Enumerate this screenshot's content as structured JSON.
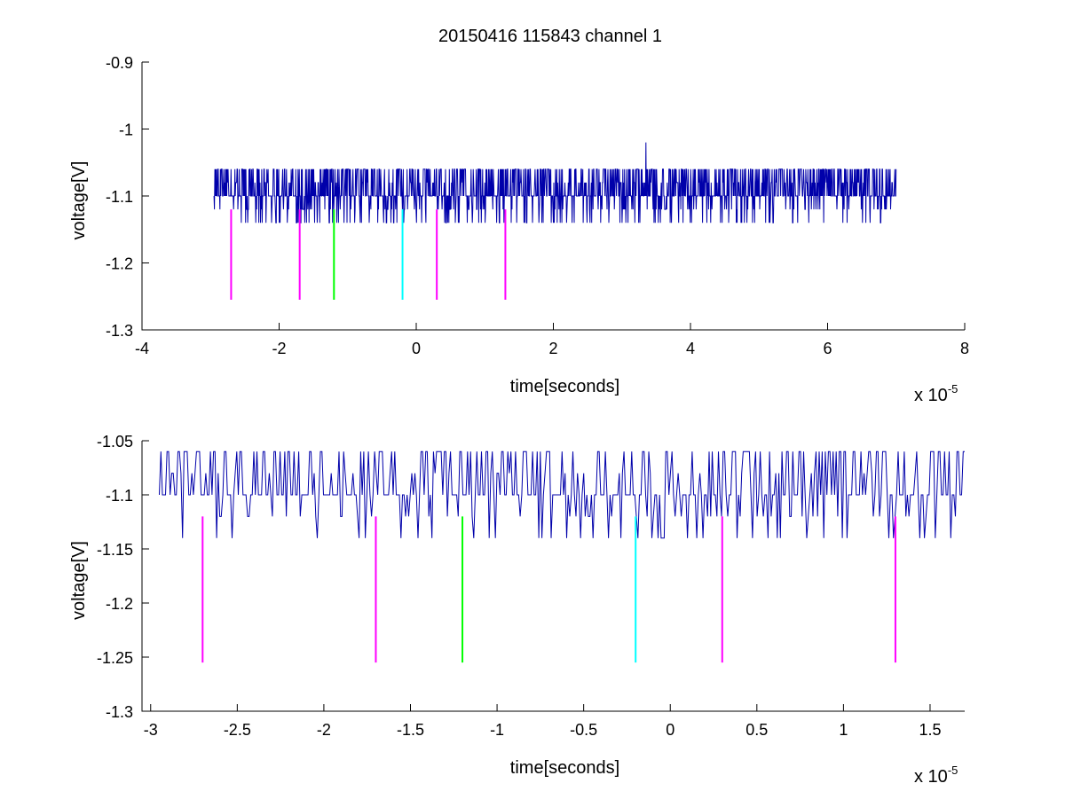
{
  "figure": {
    "title": "20150416 115843 channel 1"
  },
  "chart_data": [
    {
      "type": "line",
      "title": "20150416 115843 channel 1",
      "xlabel": "time[seconds]",
      "ylabel": "voltage[V]",
      "x_exponent_label": "x 10",
      "x_exponent_power": "-5",
      "xlim": [
        -4e-05,
        8e-05
      ],
      "ylim": [
        -1.3,
        -0.9
      ],
      "xticks": [
        -4,
        -2,
        0,
        2,
        4,
        6,
        8
      ],
      "xtick_labels": [
        "-4",
        "-2",
        "0",
        "2",
        "4",
        "6",
        "8"
      ],
      "yticks": [
        -1.3,
        -1.2,
        -1.1,
        -1.0,
        -0.9
      ],
      "ytick_labels": [
        "-1.3",
        "-1.2",
        "-1.1",
        "-1",
        "-0.9"
      ],
      "grid": false,
      "series": [
        {
          "kind": "signal",
          "color": "#0000aa",
          "x_start": -2.95e-05,
          "x_end": 7e-05,
          "levels": [
            -1.14,
            -1.12,
            -1.1,
            -1.08,
            -1.06
          ],
          "baseline": -1.1,
          "peak": {
            "x": 3.35e-05,
            "y": -1.02
          }
        }
      ],
      "markers": [
        {
          "x": -2.7e-05,
          "y_top": -1.12,
          "y_bottom": -1.255,
          "color": "#ff00ff"
        },
        {
          "x": -1.7e-05,
          "y_top": -1.12,
          "y_bottom": -1.255,
          "color": "#ff00ff"
        },
        {
          "x": -1.2e-05,
          "y_top": -1.12,
          "y_bottom": -1.255,
          "color": "#00ff00"
        },
        {
          "x": -2e-06,
          "y_top": -1.12,
          "y_bottom": -1.255,
          "color": "#00ffff"
        },
        {
          "x": 3e-06,
          "y_top": -1.12,
          "y_bottom": -1.255,
          "color": "#ff00ff"
        },
        {
          "x": 1.3e-05,
          "y_top": -1.12,
          "y_bottom": -1.255,
          "color": "#ff00ff"
        }
      ]
    },
    {
      "type": "line",
      "title": "",
      "xlabel": "time[seconds]",
      "ylabel": "voltage[V]",
      "x_exponent_label": "x 10",
      "x_exponent_power": "-5",
      "xlim": [
        -3.05e-05,
        1.7e-05
      ],
      "ylim": [
        -1.3,
        -1.05
      ],
      "xticks": [
        -3,
        -2.5,
        -2,
        -1.5,
        -1,
        -0.5,
        0,
        0.5,
        1,
        1.5
      ],
      "xtick_labels": [
        "-3",
        "-2.5",
        "-2",
        "-1.5",
        "-1",
        "-0.5",
        "0",
        "0.5",
        "1",
        "1.5"
      ],
      "yticks": [
        -1.3,
        -1.25,
        -1.2,
        -1.15,
        -1.1,
        -1.05
      ],
      "ytick_labels": [
        "-1.3",
        "-1.25",
        "-1.2",
        "-1.15",
        "-1.1",
        "-1.05"
      ],
      "grid": false,
      "series": [
        {
          "kind": "signal",
          "color": "#0000aa",
          "x_start": -2.95e-05,
          "x_end": 1.7e-05,
          "levels": [
            -1.14,
            -1.12,
            -1.1,
            -1.08,
            -1.06
          ],
          "baseline": -1.1
        }
      ],
      "markers": [
        {
          "x": -2.7e-05,
          "y_top": -1.12,
          "y_bottom": -1.255,
          "color": "#ff00ff"
        },
        {
          "x": -1.7e-05,
          "y_top": -1.12,
          "y_bottom": -1.255,
          "color": "#ff00ff"
        },
        {
          "x": -1.2e-05,
          "y_top": -1.12,
          "y_bottom": -1.255,
          "color": "#00ff00"
        },
        {
          "x": -2e-06,
          "y_top": -1.12,
          "y_bottom": -1.255,
          "color": "#00ffff"
        },
        {
          "x": 3e-06,
          "y_top": -1.12,
          "y_bottom": -1.255,
          "color": "#ff00ff"
        },
        {
          "x": 1.3e-05,
          "y_top": -1.12,
          "y_bottom": -1.255,
          "color": "#ff00ff"
        }
      ]
    }
  ]
}
